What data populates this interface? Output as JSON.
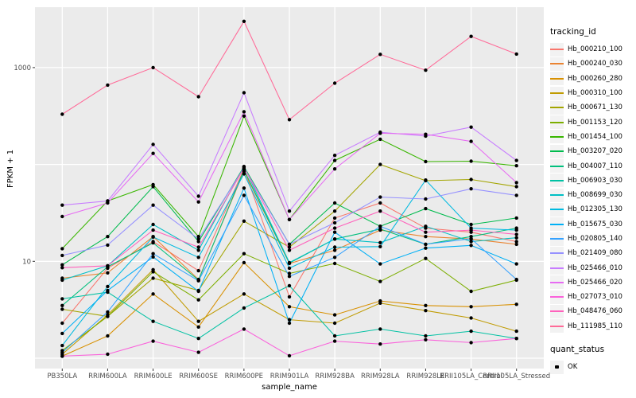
{
  "chart_data": {
    "type": "line",
    "title": "",
    "xlabel": "sample_name",
    "ylabel": "FPKM + 1",
    "y_scale": "log10",
    "ylim": [
      0.75,
      3500
    ],
    "grid": true,
    "legend_position": "right",
    "panel_color": "#EBEBEB",
    "gridline_color": "#FFFFFF",
    "tick_text_color": "#4D4D4D",
    "point_color": "#000000",
    "y_ticks": [
      {
        "label": "1000",
        "value": 1000
      },
      {
        "label": "10",
        "value": 10
      }
    ],
    "y_gridlines": [
      1,
      10,
      100,
      1000
    ],
    "categories": [
      "PB350LA",
      "RRIM600LA",
      "RRIM600LE",
      "RRIM600SE",
      "RRIM600PE",
      "RRIM901LA",
      "RRIM928BA",
      "RRIM928LA",
      "RRIM928LE",
      "RRII105LA_Control",
      "RRII105LA_Stressed"
    ],
    "legend": {
      "tracking_title": "tracking_id",
      "quant_title": "quant_status",
      "quant_items": [
        {
          "label": "OK"
        }
      ]
    },
    "series": [
      {
        "name": "Hb_000210_100",
        "color": "#F8766D",
        "values": [
          2.3,
          8.5,
          16,
          8.0,
          90,
          4.3,
          28,
          40,
          22,
          20,
          16
        ]
      },
      {
        "name": "Hb_000240_030",
        "color": "#EA8331",
        "values": [
          6.7,
          7.6,
          18,
          6.5,
          85,
          9.5,
          13,
          21,
          18,
          17,
          15
        ]
      },
      {
        "name": "Hb_000260_280",
        "color": "#D89000",
        "values": [
          1.05,
          1.7,
          4.6,
          2.1,
          9.7,
          3.4,
          2.8,
          3.9,
          3.5,
          3.4,
          3.6
        ]
      },
      {
        "name": "Hb_000310_100",
        "color": "#C09B00",
        "values": [
          1.1,
          2.8,
          8.2,
          2.4,
          4.6,
          2.5,
          2.3,
          3.7,
          3.1,
          2.6,
          1.9
        ]
      },
      {
        "name": "Hb_000671_130",
        "color": "#A3A500",
        "values": [
          3.2,
          2.7,
          6.7,
          5.0,
          26,
          14,
          33,
          100,
          68,
          70,
          59
        ]
      },
      {
        "name": "Hb_001153_120",
        "color": "#7CAE00",
        "values": [
          1.2,
          2.7,
          7.8,
          4.0,
          12,
          7.5,
          9.5,
          6.2,
          10.7,
          4.9,
          6.4
        ]
      },
      {
        "name": "Hb_001454_100",
        "color": "#39B600",
        "values": [
          13.5,
          42,
          62,
          18,
          316,
          27,
          110,
          182,
          107,
          108,
          97
        ]
      },
      {
        "name": "Hb_003207_020",
        "color": "#00BB4E",
        "values": [
          9.2,
          18,
          59,
          16,
          95,
          15,
          40,
          23,
          35,
          24,
          28
        ]
      },
      {
        "name": "Hb_004007_110",
        "color": "#00BF7D",
        "values": [
          3.5,
          8.8,
          15.5,
          6.4,
          88,
          9.6,
          17,
          21.5,
          15,
          18,
          22
        ]
      },
      {
        "name": "Hb_006903_030",
        "color": "#00C1A3",
        "values": [
          4.1,
          4.8,
          2.4,
          1.6,
          3.3,
          5.6,
          1.7,
          2.0,
          1.7,
          1.9,
          1.6
        ]
      },
      {
        "name": "Hb_008699_030",
        "color": "#00BFC4",
        "values": [
          6.4,
          9.0,
          24,
          13,
          95,
          9.7,
          17,
          15.6,
          23,
          16,
          17.5
        ]
      },
      {
        "name": "Hb_012305_130",
        "color": "#00BAE0",
        "values": [
          1.35,
          5.5,
          17.8,
          11,
          80,
          8.5,
          14,
          14.2,
          69,
          22,
          21
        ]
      },
      {
        "name": "Hb_015675_030",
        "color": "#00B0F6",
        "values": [
          1.8,
          5.0,
          11.1,
          4.9,
          57,
          2.3,
          20,
          9.4,
          13.7,
          14.6,
          9.4
        ]
      },
      {
        "name": "Hb_020805_140",
        "color": "#35A2FF",
        "values": [
          1.15,
          3.0,
          12,
          6.3,
          48,
          7.0,
          11,
          23,
          15,
          17.1,
          6.5
        ]
      },
      {
        "name": "Hb_021409_080",
        "color": "#9590FF",
        "values": [
          11.5,
          14.7,
          38,
          17,
          92,
          15,
          25,
          46,
          44,
          56,
          48
        ]
      },
      {
        "name": "Hb_025466_010",
        "color": "#C77CFF",
        "values": [
          38,
          42,
          161,
          47,
          550,
          33,
          124,
          215,
          196,
          243,
          110
        ]
      },
      {
        "name": "Hb_025466_020",
        "color": "#E76BF3",
        "values": [
          29,
          40,
          130,
          41,
          350,
          27,
          90,
          210,
          205,
          173,
          65
        ]
      },
      {
        "name": "Hb_027073_010",
        "color": "#FA62DB",
        "values": [
          1.05,
          1.1,
          1.5,
          1.15,
          2.0,
          1.06,
          1.5,
          1.4,
          1.55,
          1.45,
          1.6
        ]
      },
      {
        "name": "Hb_048476_060",
        "color": "#FF62BC",
        "values": [
          8.6,
          9.0,
          21,
          14,
          92,
          13,
          22,
          33,
          20,
          21,
          19
        ]
      },
      {
        "name": "Hb_111985_110",
        "color": "#FF6A98",
        "values": [
          330,
          660,
          1000,
          500,
          3000,
          290,
          690,
          1370,
          940,
          2100,
          1380
        ]
      }
    ]
  }
}
